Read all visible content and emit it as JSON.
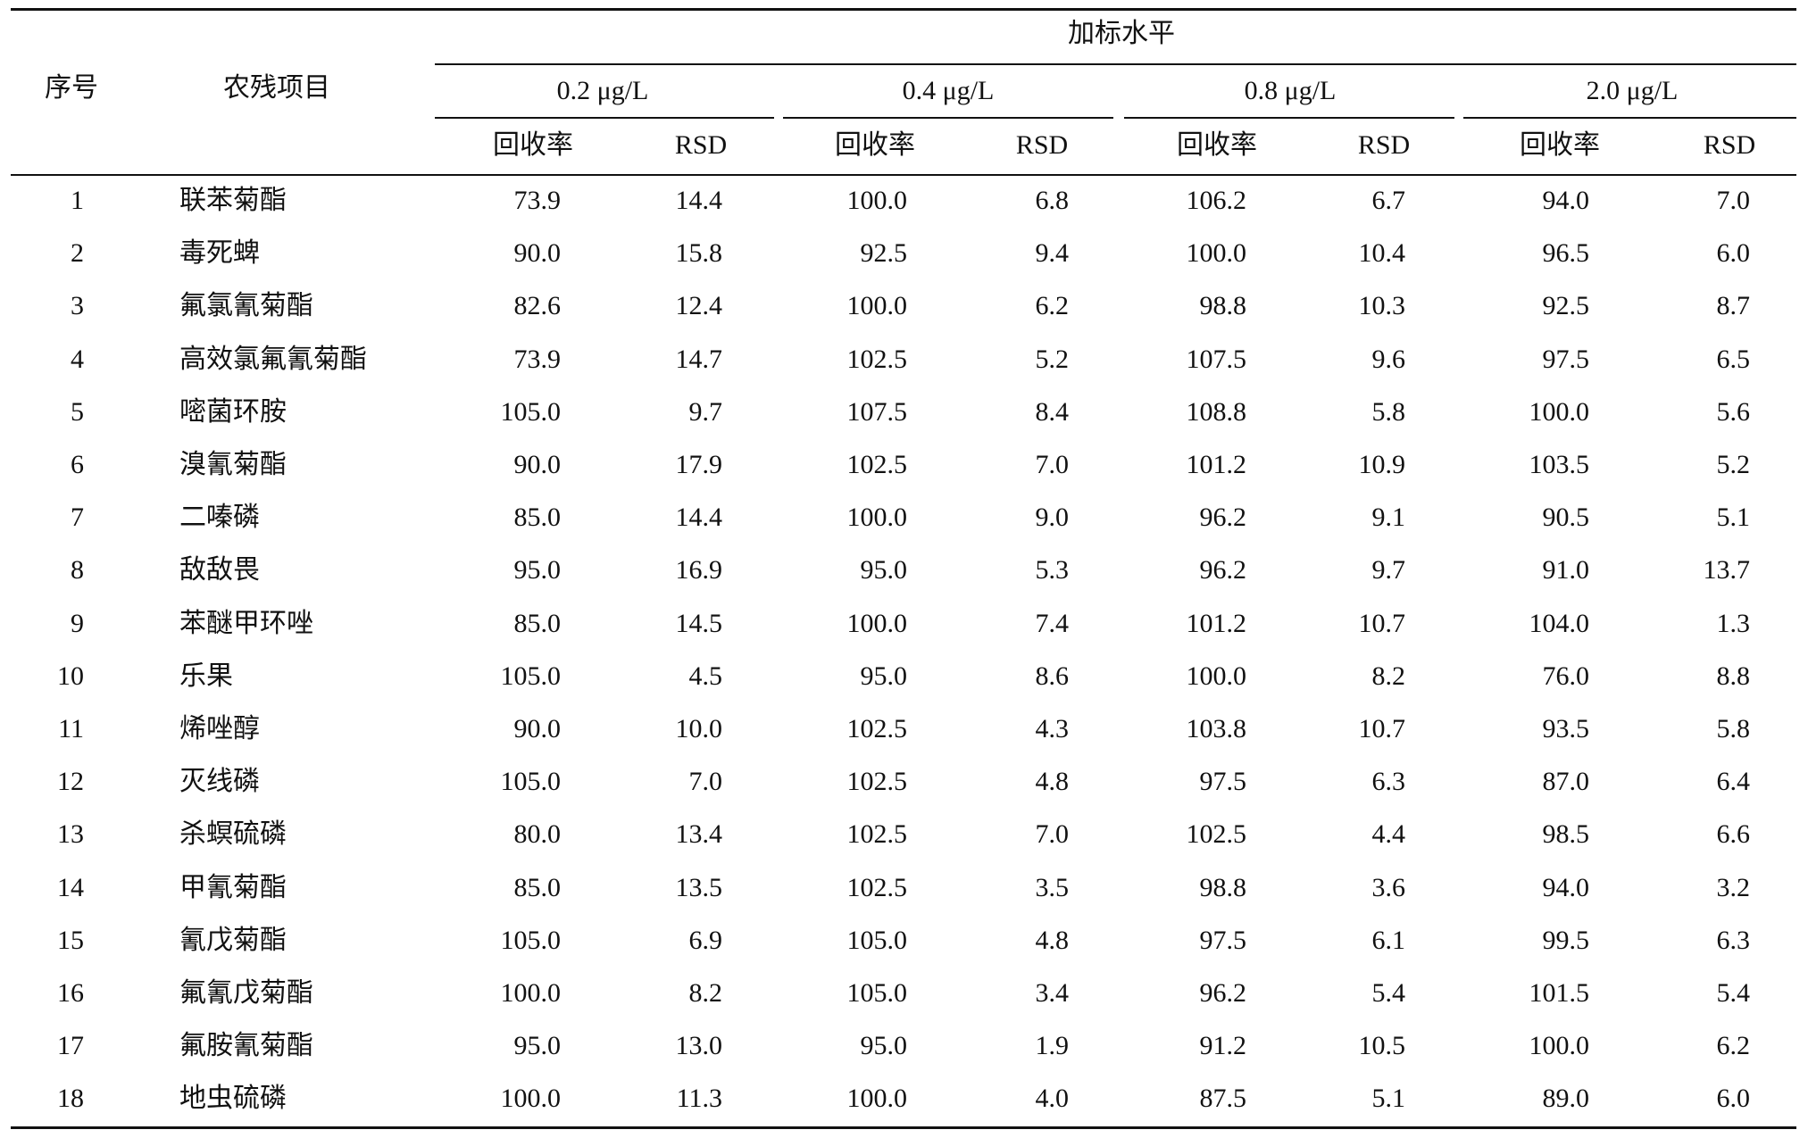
{
  "table": {
    "group_header": "加标水平",
    "col_index": "序号",
    "col_item": "农残项目",
    "levels": [
      "0.2 μg/L",
      "0.4 μg/L",
      "0.8 μg/L",
      "2.0 μg/L"
    ],
    "sub_recovery": "回收率",
    "sub_rsd": "RSD",
    "rows": [
      {
        "no": "1",
        "name": "联苯菊酯",
        "v": [
          "73.9",
          "14.4",
          "100.0",
          "6.8",
          "106.2",
          "6.7",
          "94.0",
          "7.0"
        ]
      },
      {
        "no": "2",
        "name": "毒死蜱",
        "v": [
          "90.0",
          "15.8",
          "92.5",
          "9.4",
          "100.0",
          "10.4",
          "96.5",
          "6.0"
        ]
      },
      {
        "no": "3",
        "name": "氟氯氰菊酯",
        "v": [
          "82.6",
          "12.4",
          "100.0",
          "6.2",
          "98.8",
          "10.3",
          "92.5",
          "8.7"
        ]
      },
      {
        "no": "4",
        "name": "高效氯氟氰菊酯",
        "v": [
          "73.9",
          "14.7",
          "102.5",
          "5.2",
          "107.5",
          "9.6",
          "97.5",
          "6.5"
        ]
      },
      {
        "no": "5",
        "name": "嘧菌环胺",
        "v": [
          "105.0",
          "9.7",
          "107.5",
          "8.4",
          "108.8",
          "5.8",
          "100.0",
          "5.6"
        ]
      },
      {
        "no": "6",
        "name": "溴氰菊酯",
        "v": [
          "90.0",
          "17.9",
          "102.5",
          "7.0",
          "101.2",
          "10.9",
          "103.5",
          "5.2"
        ]
      },
      {
        "no": "7",
        "name": "二嗪磷",
        "v": [
          "85.0",
          "14.4",
          "100.0",
          "9.0",
          "96.2",
          "9.1",
          "90.5",
          "5.1"
        ]
      },
      {
        "no": "8",
        "name": "敌敌畏",
        "v": [
          "95.0",
          "16.9",
          "95.0",
          "5.3",
          "96.2",
          "9.7",
          "91.0",
          "13.7"
        ]
      },
      {
        "no": "9",
        "name": "苯醚甲环唑",
        "v": [
          "85.0",
          "14.5",
          "100.0",
          "7.4",
          "101.2",
          "10.7",
          "104.0",
          "1.3"
        ]
      },
      {
        "no": "10",
        "name": "乐果",
        "v": [
          "105.0",
          "4.5",
          "95.0",
          "8.6",
          "100.0",
          "8.2",
          "76.0",
          "8.8"
        ]
      },
      {
        "no": "11",
        "name": "烯唑醇",
        "v": [
          "90.0",
          "10.0",
          "102.5",
          "4.3",
          "103.8",
          "10.7",
          "93.5",
          "5.8"
        ]
      },
      {
        "no": "12",
        "name": "灭线磷",
        "v": [
          "105.0",
          "7.0",
          "102.5",
          "4.8",
          "97.5",
          "6.3",
          "87.0",
          "6.4"
        ]
      },
      {
        "no": "13",
        "name": "杀螟硫磷",
        "v": [
          "80.0",
          "13.4",
          "102.5",
          "7.0",
          "102.5",
          "4.4",
          "98.5",
          "6.6"
        ]
      },
      {
        "no": "14",
        "name": "甲氰菊酯",
        "v": [
          "85.0",
          "13.5",
          "102.5",
          "3.5",
          "98.8",
          "3.6",
          "94.0",
          "3.2"
        ]
      },
      {
        "no": "15",
        "name": "氰戊菊酯",
        "v": [
          "105.0",
          "6.9",
          "105.0",
          "4.8",
          "97.5",
          "6.1",
          "99.5",
          "6.3"
        ]
      },
      {
        "no": "16",
        "name": "氟氰戊菊酯",
        "v": [
          "100.0",
          "8.2",
          "105.0",
          "3.4",
          "96.2",
          "5.4",
          "101.5",
          "5.4"
        ]
      },
      {
        "no": "17",
        "name": "氟胺氰菊酯",
        "v": [
          "95.0",
          "13.0",
          "95.0",
          "1.9",
          "91.2",
          "10.5",
          "100.0",
          "6.2"
        ]
      },
      {
        "no": "18",
        "name": "地虫硫磷",
        "v": [
          "100.0",
          "11.3",
          "100.0",
          "4.0",
          "87.5",
          "5.1",
          "89.0",
          "6.0"
        ]
      }
    ]
  }
}
